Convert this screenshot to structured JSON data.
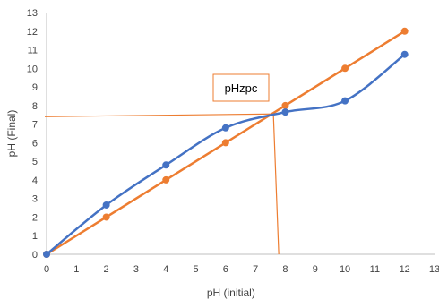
{
  "chart_data": {
    "type": "line",
    "title": "",
    "xlabel": "pH (initial)",
    "ylabel": "pH (Final)",
    "xlim": [
      0,
      13
    ],
    "ylim": [
      0,
      13
    ],
    "x_ticks": [
      "0",
      "1",
      "2",
      "3",
      "4",
      "5",
      "6",
      "7",
      "8",
      "9",
      "10",
      "11",
      "12",
      "13"
    ],
    "y_ticks": [
      "0",
      "1",
      "2",
      "3",
      "4",
      "5",
      "6",
      "7",
      "8",
      "9",
      "10",
      "11",
      "12",
      "13"
    ],
    "grid": false,
    "legend": "none",
    "series": [
      {
        "color": "#4472C4",
        "smooth": true,
        "x": [
          0,
          2,
          4,
          6,
          8,
          10,
          12
        ],
        "y": [
          0,
          2.65,
          4.8,
          6.8,
          7.65,
          8.25,
          10.75
        ]
      },
      {
        "color": "#ED7D31",
        "smooth": false,
        "x": [
          0,
          2,
          4,
          6,
          8,
          10,
          12
        ],
        "y": [
          0,
          2,
          4,
          6,
          8,
          10,
          12
        ]
      }
    ],
    "annotations": {
      "label": "pHzpc",
      "pzc_x": 7.6,
      "pzc_y": 7.5,
      "line_color": "#ED7D31"
    }
  }
}
